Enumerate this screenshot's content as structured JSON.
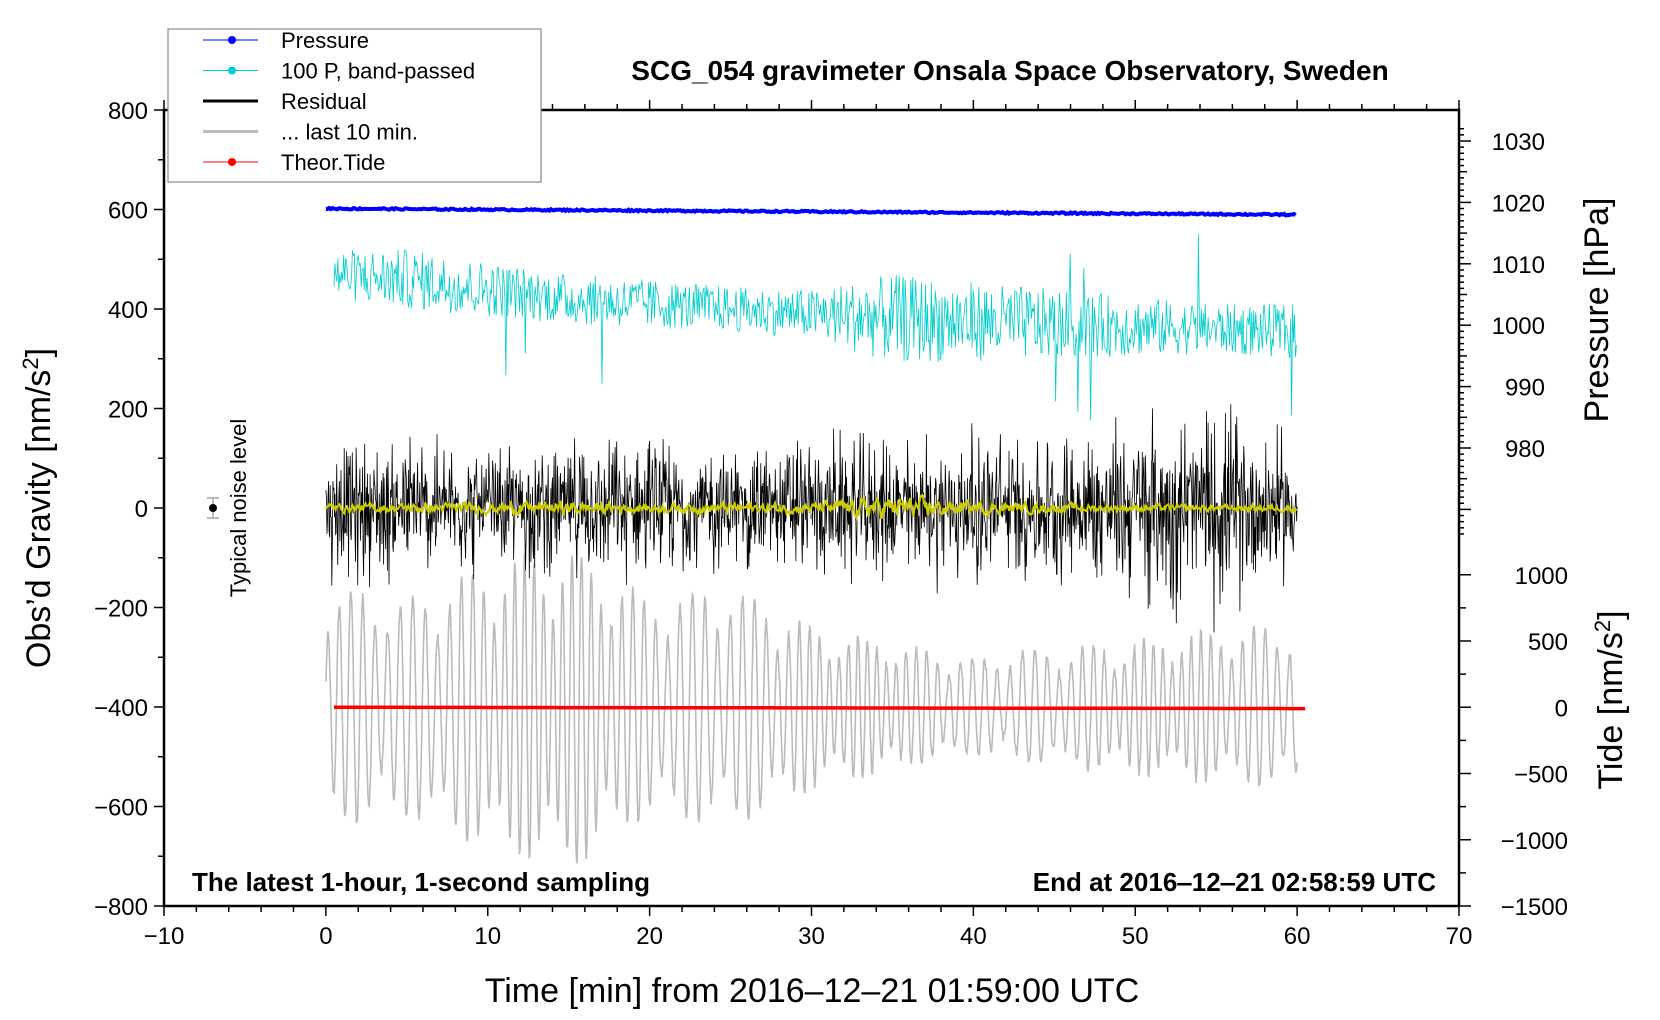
{
  "chart_data": {
    "type": "line",
    "title": "SCG_054 gravimeter Onsala Space Observatory, Sweden",
    "xlabel": "Time [min] from 2016‒12‒21 01:59:00 UTC",
    "ylabel": "Obs’d Gravity [nm/s",
    "ylabel_sup": "2",
    "ylabel_end": "]",
    "y2label": "Pressure [hPa]",
    "y3label": "Tide [nm/s",
    "y3label_sup": "2",
    "y3label_end": "]",
    "xlim": [
      -10,
      70
    ],
    "ylim": [
      -800,
      800
    ],
    "pressure_lim": [
      980,
      1030
    ],
    "tide_lim": [
      -1500,
      1000
    ],
    "x_ticks": [
      "−10",
      "0",
      "10",
      "20",
      "30",
      "40",
      "50",
      "60",
      "70"
    ],
    "x_tick_values": [
      -10,
      0,
      10,
      20,
      30,
      40,
      50,
      60,
      70
    ],
    "y_ticks": [
      "800",
      "600",
      "400",
      "200",
      "0",
      "−200",
      "−400",
      "−600",
      "−800"
    ],
    "y_tick_values": [
      800,
      600,
      400,
      200,
      0,
      -200,
      -400,
      -600,
      -800
    ],
    "pressure_ticks": [
      "1030",
      "1020",
      "1010",
      "1000",
      "990",
      "980"
    ],
    "pressure_tick_values": [
      1030,
      1020,
      1010,
      1000,
      990,
      980
    ],
    "tide_ticks": [
      "1000",
      "500",
      "0",
      "−500",
      "−1000",
      "−1500"
    ],
    "tide_tick_values": [
      1000,
      500,
      0,
      -500,
      -1000,
      -1500
    ],
    "annotation_left": "The latest 1‑hour, 1‑second sampling",
    "annotation_right": "End at 2016‒12‒21 02:58:59 UTC",
    "noise_label": "Typical noise level",
    "noise_level": {
      "x": -7,
      "y": 0,
      "err": 20
    },
    "legend": {
      "placement": "top-left",
      "entries": [
        {
          "label": "Pressure",
          "color": "#0000ff",
          "marker": "dot"
        },
        {
          "label": "100 P, band‑passed",
          "color": "#00cccc",
          "marker": "dot"
        },
        {
          "label": "Residual",
          "color": "#000000",
          "marker": "line"
        },
        {
          "label": "... last 10 min.",
          "color": "#bbbbbb",
          "marker": "line"
        },
        {
          "label": "Theor.Tide",
          "color": "#ff0000",
          "marker": "dot"
        }
      ]
    },
    "series": [
      {
        "name": "Pressure",
        "axis": "pressure",
        "color": "#0000ff",
        "x_range": [
          0,
          60
        ],
        "start": 1019.0,
        "end": 1018.0
      },
      {
        "name": "100 P, band-passed",
        "axis": "gravity",
        "color": "#00cccc",
        "x_range": [
          0.5,
          60
        ],
        "mean_per_5min": [
          470,
          460,
          440,
          420,
          410,
          400,
          390,
          380,
          375,
          370,
          365,
          360,
          355
        ],
        "amplitude_per_5min": [
          50,
          60,
          55,
          50,
          50,
          45,
          50,
          90,
          80,
          70,
          60,
          50,
          55
        ]
      },
      {
        "name": "Residual",
        "axis": "gravity",
        "color": "#000000",
        "x_range": [
          0,
          60
        ],
        "amplitude_per_5min": [
          170,
          180,
          150,
          160,
          170,
          150,
          180,
          170,
          190,
          170,
          230,
          260,
          170
        ]
      },
      {
        "name": "Residual smoothed",
        "axis": "gravity",
        "color": "#cccc00",
        "x_range": [
          0,
          60
        ],
        "amplitude_per_5min": [
          10,
          10,
          12,
          15,
          10,
          12,
          12,
          25,
          15,
          10,
          8,
          8,
          8
        ]
      },
      {
        "name": "... last 10 min.",
        "axis": "gravity",
        "color": "#bbbbbb",
        "x_range": [
          0,
          60
        ],
        "offset": -400,
        "amplitude_per_5min": [
          220,
          200,
          260,
          300,
          200,
          220,
          150,
          120,
          90,
          110,
          120,
          140,
          150
        ]
      },
      {
        "name": "Theor.Tide",
        "axis": "tide",
        "color": "#ff0000",
        "x_range": [
          0.5,
          60.5
        ],
        "start": 0,
        "end": -10
      }
    ]
  }
}
